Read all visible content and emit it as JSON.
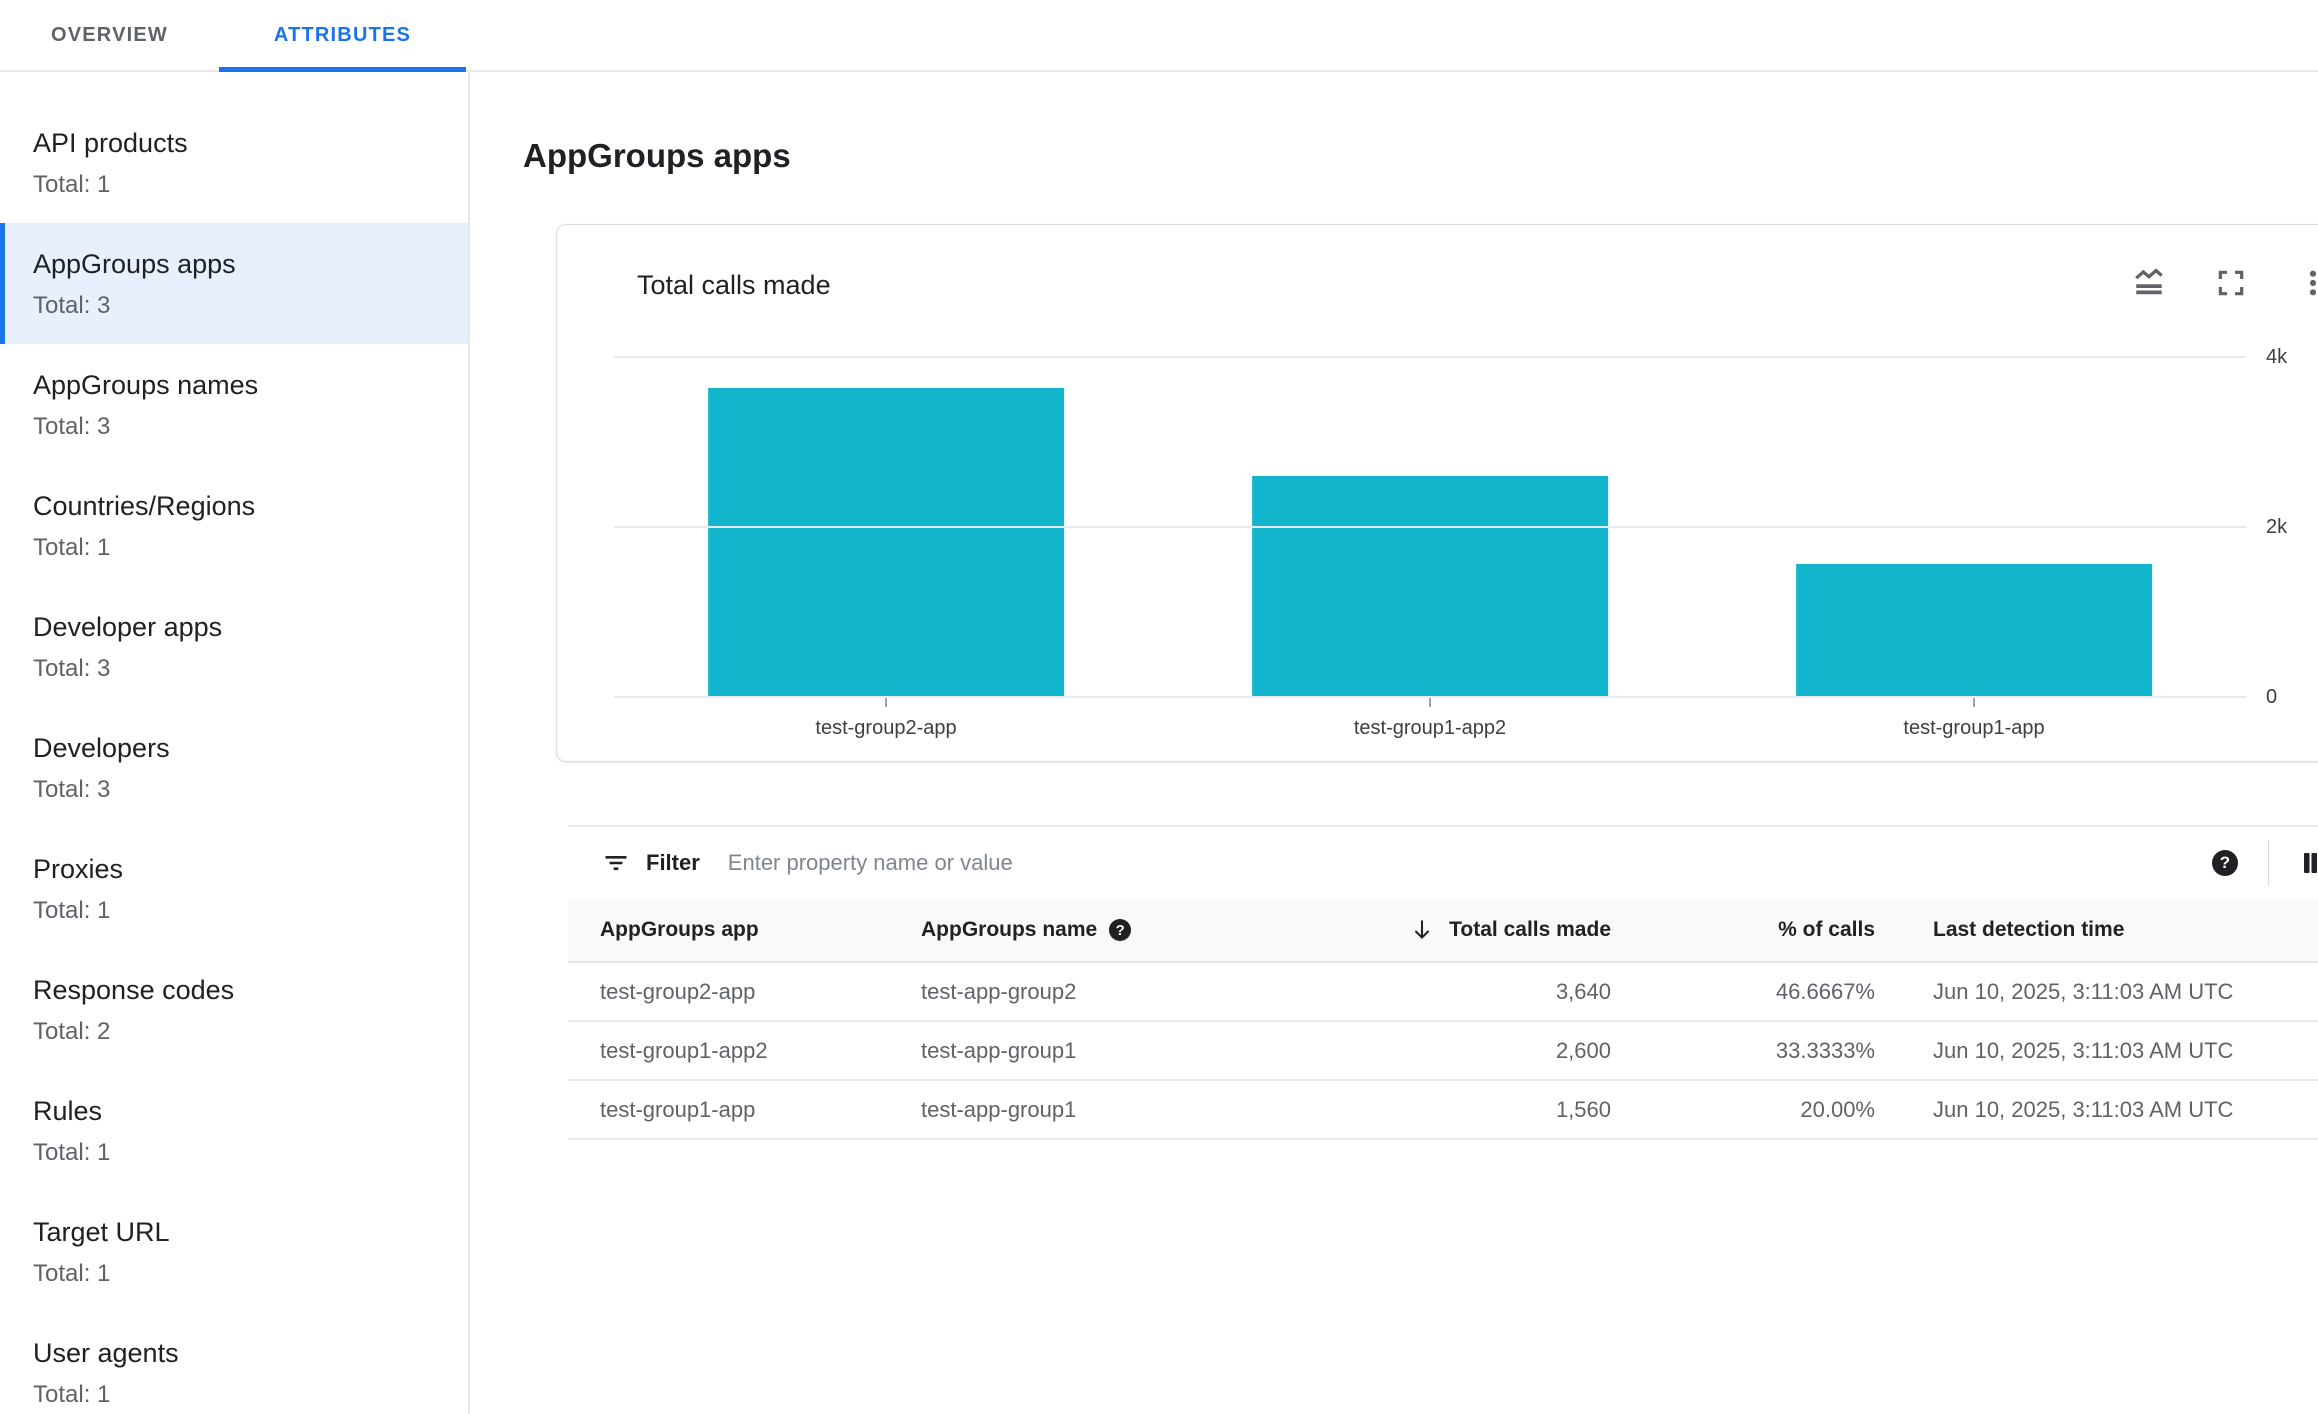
{
  "tabs": [
    {
      "label": "OVERVIEW",
      "active": false
    },
    {
      "label": "ATTRIBUTES",
      "active": true
    }
  ],
  "sidebar": {
    "items": [
      {
        "label": "API products",
        "total": "Total: 1",
        "selected": false
      },
      {
        "label": "AppGroups apps",
        "total": "Total: 3",
        "selected": true
      },
      {
        "label": "AppGroups names",
        "total": "Total: 3",
        "selected": false
      },
      {
        "label": "Countries/Regions",
        "total": "Total: 1",
        "selected": false
      },
      {
        "label": "Developer apps",
        "total": "Total: 3",
        "selected": false
      },
      {
        "label": "Developers",
        "total": "Total: 3",
        "selected": false
      },
      {
        "label": "Proxies",
        "total": "Total: 1",
        "selected": false
      },
      {
        "label": "Response codes",
        "total": "Total: 2",
        "selected": false
      },
      {
        "label": "Rules",
        "total": "Total: 1",
        "selected": false
      },
      {
        "label": "Target URL",
        "total": "Total: 1",
        "selected": false
      },
      {
        "label": "User agents",
        "total": "Total: 1",
        "selected": false
      }
    ]
  },
  "main": {
    "title": "AppGroups apps"
  },
  "chart_card": {
    "title": "Total calls made",
    "action_icons": [
      "area-chart-icon",
      "fullscreen-icon",
      "more-vert-icon"
    ]
  },
  "chart_data": {
    "type": "bar",
    "title": "Total calls made",
    "categories": [
      "test-group2-app",
      "test-group1-app2",
      "test-group1-app"
    ],
    "values": [
      3640,
      2600,
      1560
    ],
    "xlabel": "",
    "ylabel": "",
    "ylim": [
      0,
      4000
    ],
    "yticks": [
      {
        "value": 4000,
        "label": "4k"
      },
      {
        "value": 2000,
        "label": "2k"
      },
      {
        "value": 0,
        "label": "0"
      }
    ],
    "bar_color": "#12b5cb",
    "grid": true,
    "legend": false,
    "ytick_side": "right"
  },
  "filter": {
    "label": "Filter",
    "placeholder": "Enter property name or value",
    "help_glyph": "?"
  },
  "table": {
    "columns": [
      {
        "label": "AppGroups app"
      },
      {
        "label": "AppGroups name",
        "help": true,
        "help_glyph": "?"
      },
      {
        "label": "Total calls made",
        "sorted": "desc",
        "align": "right"
      },
      {
        "label": "% of calls",
        "align": "right"
      },
      {
        "label": "Last detection time"
      }
    ],
    "rows": [
      [
        "test-group2-app",
        "test-app-group2",
        "3,640",
        "46.6667%",
        "Jun 10, 2025, 3:11:03 AM UTC"
      ],
      [
        "test-group1-app2",
        "test-app-group1",
        "2,600",
        "33.3333%",
        "Jun 10, 2025, 3:11:03 AM UTC"
      ],
      [
        "test-group1-app",
        "test-app-group1",
        "1,560",
        "20.00%",
        "Jun 10, 2025, 3:11:03 AM UTC"
      ]
    ]
  },
  "colors": {
    "accent_blue": "#1a73e8",
    "bar_teal": "#12b5cb",
    "selected_bg": "#e8f0fe",
    "text_primary": "#202124",
    "text_secondary": "#5f6368",
    "header_bg": "#f8f9fa",
    "border": "#dadce0",
    "gridline": "#e8eaed"
  }
}
